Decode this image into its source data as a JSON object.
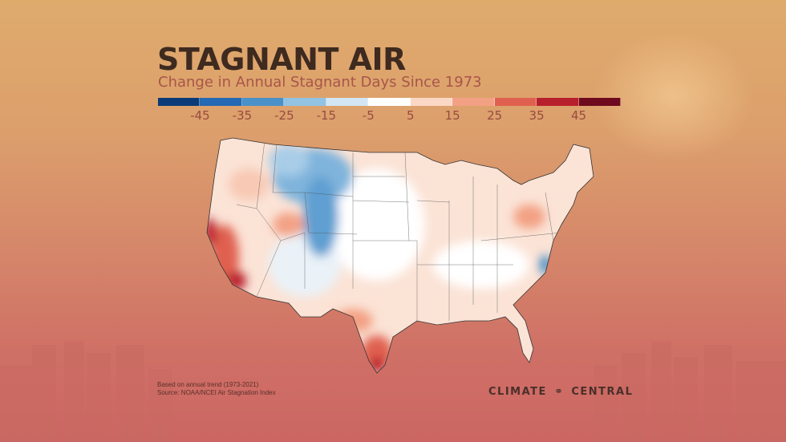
{
  "header": {
    "title": "STAGNANT AIR",
    "subtitle": "Change in Annual Stagnant Days Since 1973"
  },
  "legend": {
    "colors": [
      "#0b3a78",
      "#2469b3",
      "#4a91c9",
      "#92c3e3",
      "#d3e6f3",
      "#ffffff",
      "#fbd7c6",
      "#f3a184",
      "#e0604f",
      "#b81f2c",
      "#6e0a1d"
    ],
    "ticks": [
      "-45",
      "-35",
      "-25",
      "-15",
      "-5",
      "5",
      "15",
      "25",
      "35",
      "45"
    ]
  },
  "footer": {
    "note_line1": "Based on annual trend (1973-2021)",
    "note_line2": "Source: NOAA/NCEI Air Stagnation Index",
    "logo_text_left": "CLIMATE",
    "logo_text_right": "CENTRAL"
  }
}
